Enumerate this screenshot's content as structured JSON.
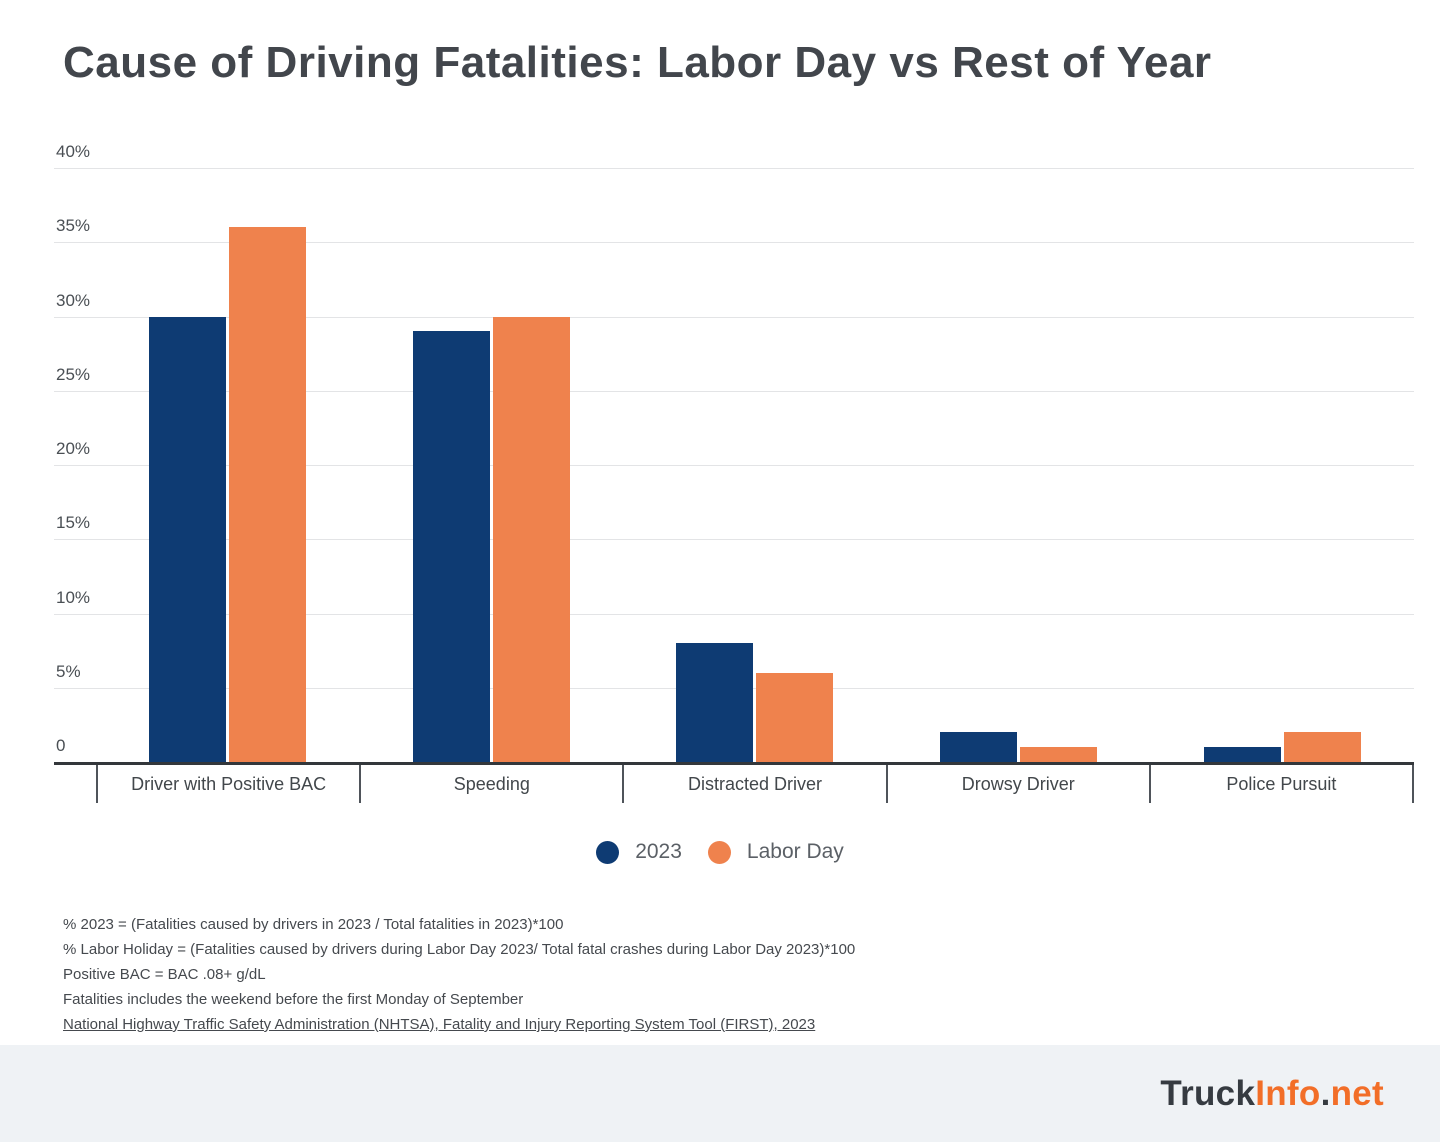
{
  "title": "Cause of Driving Fatalities: Labor Day vs Rest of Year",
  "chart_data": {
    "type": "bar",
    "categories": [
      "Driver with Positive BAC",
      "Speeding",
      "Distracted Driver",
      "Drowsy Driver",
      "Police Pursuit"
    ],
    "series": [
      {
        "name": "2023",
        "color": "#0E3B73",
        "values": [
          30,
          29,
          8,
          2,
          1
        ]
      },
      {
        "name": "Labor Day",
        "color": "#EF824D",
        "values": [
          36,
          30,
          6,
          1,
          2
        ]
      }
    ],
    "title": "Cause of Driving Fatalities: Labor Day vs Rest of Year",
    "xlabel": "",
    "ylabel": "",
    "ylim": [
      0,
      40
    ],
    "yticks": [
      {
        "v": 40,
        "label": "40%"
      },
      {
        "v": 35,
        "label": "35%"
      },
      {
        "v": 30,
        "label": "30%"
      },
      {
        "v": 25,
        "label": "25%"
      },
      {
        "v": 20,
        "label": "20%"
      },
      {
        "v": 15,
        "label": "15%"
      },
      {
        "v": 10,
        "label": "10%"
      },
      {
        "v": 5,
        "label": "5%"
      },
      {
        "v": 0,
        "label": "0"
      }
    ],
    "grid": true,
    "legend_position": "bottom"
  },
  "legend": {
    "items": [
      {
        "label": "2023",
        "color": "#0E3B73"
      },
      {
        "label": "Labor Day",
        "color": "#EF824D"
      }
    ]
  },
  "footnotes": {
    "lines": [
      "% 2023 = (Fatalities caused by drivers in 2023 / Total fatalities in 2023)*100",
      "% Labor Holiday = (Fatalities caused by drivers during Labor Day  2023/ Total fatal crashes during Labor Day 2023)*100",
      "Positive BAC = BAC .08+ g/dL",
      "Fatalities includes the weekend before the first Monday of September"
    ],
    "source": "National Highway Traffic Safety Administration (NHTSA), Fatality and Injury Reporting System Tool (FIRST), 2023"
  },
  "footer": {
    "brand": {
      "parts": [
        {
          "text": "Truck",
          "color": "#363B41"
        },
        {
          "text": "Info",
          "color": "#F26E28"
        },
        {
          "text": ".",
          "color": "#363B41"
        },
        {
          "text": "net",
          "color": "#F26E28"
        }
      ]
    }
  }
}
